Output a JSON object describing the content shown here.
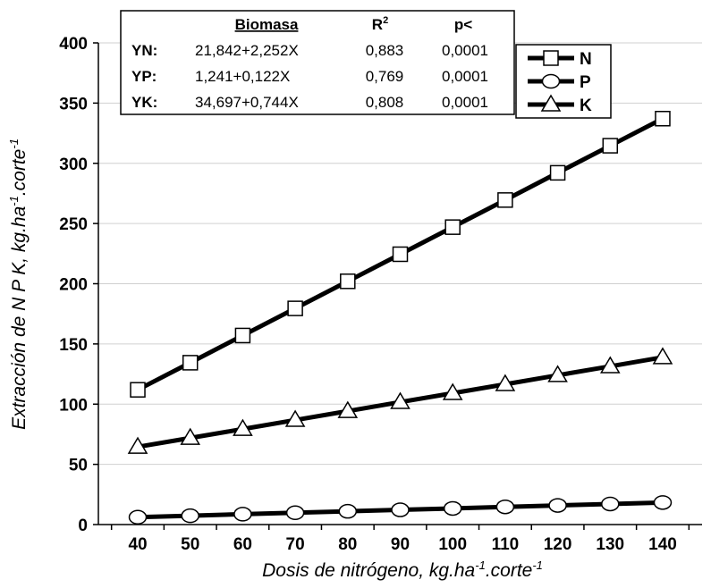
{
  "chart_data": {
    "type": "line",
    "x": [
      40,
      50,
      60,
      70,
      80,
      90,
      100,
      110,
      120,
      130,
      140
    ],
    "xlim": [
      32.5,
      147.5
    ],
    "ylim": [
      0,
      400
    ],
    "yticks": [
      0,
      50,
      100,
      150,
      200,
      250,
      300,
      350,
      400
    ],
    "xlabel": {
      "base": "Dosis de nitrógeno, kg.ha",
      "sup1": "-1",
      "mid": ".corte",
      "sup2": "-1"
    },
    "ylabel": {
      "base": "Extracción de N P K, kg.ha",
      "sup1": "-1",
      "mid": ".corte",
      "sup2": "-1"
    },
    "grid": "horizontal",
    "series": [
      {
        "name": "N",
        "marker": "square",
        "values": [
          111.9,
          134.4,
          157.0,
          179.5,
          202.0,
          224.5,
          247.0,
          269.5,
          292.1,
          314.6,
          337.1
        ]
      },
      {
        "name": "P",
        "marker": "circle",
        "values": [
          6.1,
          7.3,
          8.6,
          9.8,
          11.0,
          12.2,
          13.4,
          14.7,
          15.9,
          17.1,
          18.3
        ]
      },
      {
        "name": "K",
        "marker": "triangle",
        "values": [
          64.5,
          71.9,
          79.3,
          86.8,
          94.2,
          101.7,
          109.1,
          116.5,
          124.0,
          131.4,
          138.9
        ]
      }
    ],
    "legend_position": "top-right",
    "equations_table": {
      "headers": [
        "Biomasa",
        "R",
        "2",
        "p<"
      ],
      "rows": [
        [
          "YN:",
          "21,842+2,252X",
          "0,883",
          "0,0001"
        ],
        [
          "YP:",
          "1,241+0,122X",
          "0,769",
          "0,0001"
        ],
        [
          "YK:",
          "34,697+0,744X",
          "0,808",
          "0,0001"
        ]
      ]
    }
  }
}
